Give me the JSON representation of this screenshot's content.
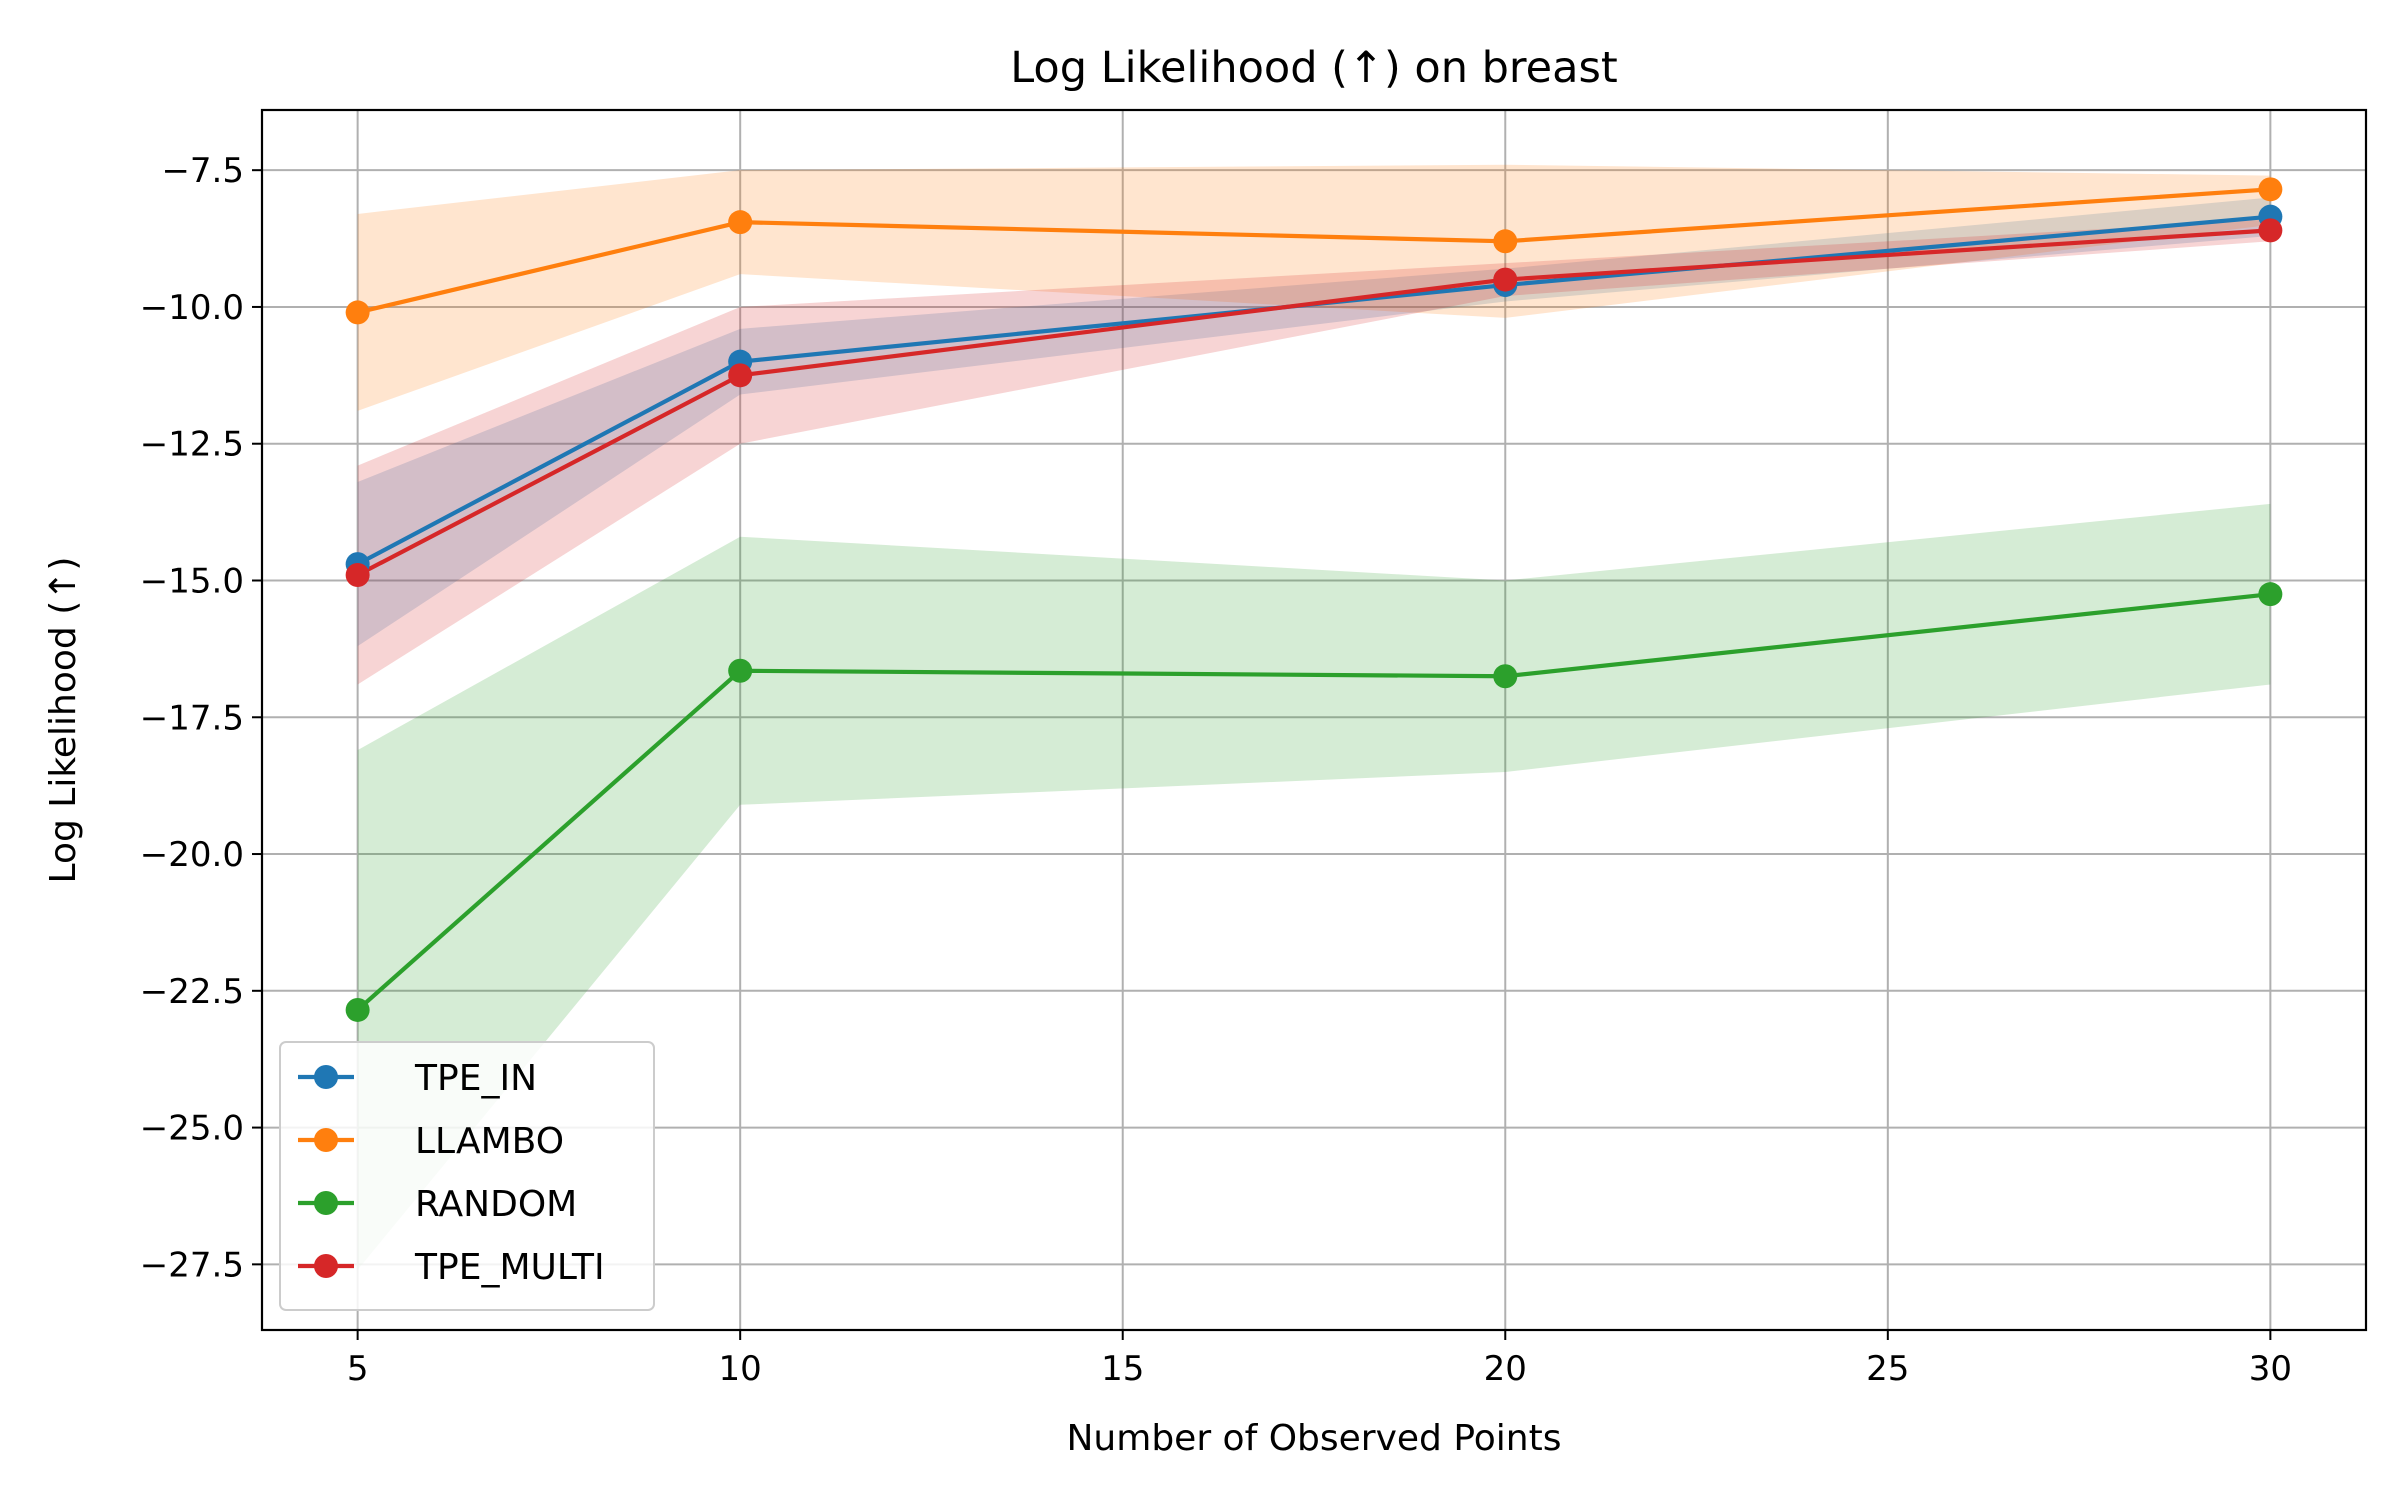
{
  "chart_data": {
    "type": "line",
    "title": "Log Likelihood (↑) on breast",
    "xlabel": "Number of Observed Points",
    "ylabel": "Log Likelihood (↑)",
    "x": [
      5,
      10,
      20,
      30
    ],
    "xticks": [
      5,
      10,
      15,
      20,
      25,
      30
    ],
    "xtick_labels": [
      "5",
      "10",
      "15",
      "20",
      "25",
      "30"
    ],
    "yticks": [
      -27.5,
      -25.0,
      -22.5,
      -20.0,
      -17.5,
      -15.0,
      -12.5,
      -10.0,
      -7.5
    ],
    "ytick_labels": [
      "−27.5",
      "−25.0",
      "−22.5",
      "−20.0",
      "−17.5",
      "−15.0",
      "−12.5",
      "−10.0",
      "−7.5"
    ],
    "xlim": [
      3.75,
      31.25
    ],
    "ylim": [
      -28.7,
      -6.4
    ],
    "grid": true,
    "legend_position": "lower-left",
    "series": [
      {
        "name": "TPE_IN",
        "color": "#1f77b4",
        "values": [
          -14.7,
          -11.0,
          -9.6,
          -8.35
        ],
        "lower": [
          -16.2,
          -11.6,
          -9.9,
          -8.7
        ],
        "upper": [
          -13.2,
          -10.4,
          -9.3,
          -8.0
        ]
      },
      {
        "name": "LLAMBO",
        "color": "#ff7f0e",
        "values": [
          -10.1,
          -8.45,
          -8.8,
          -7.85
        ],
        "lower": [
          -11.9,
          -9.4,
          -10.2,
          -8.5
        ],
        "upper": [
          -8.3,
          -7.5,
          -7.4,
          -7.6
        ]
      },
      {
        "name": "RANDOM",
        "color": "#2ca02c",
        "values": [
          -22.85,
          -16.65,
          -16.75,
          -15.25
        ],
        "lower": [
          -27.6,
          -19.1,
          -18.5,
          -16.9
        ],
        "upper": [
          -18.1,
          -14.2,
          -15.0,
          -13.6
        ]
      },
      {
        "name": "TPE_MULTI",
        "color": "#d62728",
        "values": [
          -14.9,
          -11.25,
          -9.5,
          -8.6
        ],
        "lower": [
          -16.9,
          -12.5,
          -9.8,
          -8.8
        ],
        "upper": [
          -12.9,
          -10.0,
          -9.2,
          -8.4
        ]
      }
    ]
  }
}
